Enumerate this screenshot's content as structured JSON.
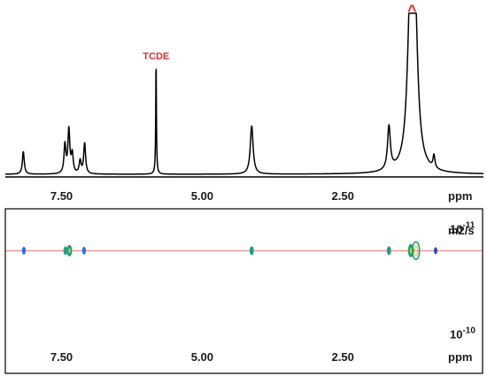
{
  "chart_data": [
    {
      "type": "line",
      "name": "1H NMR spectrum",
      "xlabel": "ppm",
      "xlim": [
        8.5,
        0.0
      ],
      "x_reversed": true,
      "ticks": [
        7.5,
        5.0,
        2.5
      ],
      "tick_labels": [
        "7.50",
        "5.00",
        "2.50"
      ],
      "annotations": [
        {
          "text": "TCDE",
          "color": "#e8262a",
          "x": 5.82
        },
        {
          "text": "^",
          "color": "#e8262a",
          "x": 1.27
        }
      ],
      "peaks": [
        {
          "ppm": 8.18,
          "height": 0.14,
          "width": 0.02
        },
        {
          "ppm": 7.44,
          "height": 0.18,
          "width": 0.02
        },
        {
          "ppm": 7.37,
          "height": 0.27,
          "width": 0.02
        },
        {
          "ppm": 7.31,
          "height": 0.12,
          "width": 0.02
        },
        {
          "ppm": 7.17,
          "height": 0.08,
          "width": 0.02
        },
        {
          "ppm": 7.09,
          "height": 0.19,
          "width": 0.02
        },
        {
          "ppm": 5.82,
          "height": 0.1,
          "width": 0.015
        },
        {
          "ppm": 5.82,
          "height": 0.63,
          "width": 0.006
        },
        {
          "ppm": 4.12,
          "height": 0.3,
          "width": 0.03
        },
        {
          "ppm": 1.68,
          "height": 0.27,
          "width": 0.03
        },
        {
          "ppm": 1.3,
          "height": 0.93,
          "width": 0.06
        },
        {
          "ppm": 1.22,
          "height": 0.93,
          "width": 0.06
        },
        {
          "ppm": 0.88,
          "height": 0.08,
          "width": 0.02
        }
      ]
    },
    {
      "type": "scatter",
      "name": "DOSY contour plot",
      "xlabel": "ppm",
      "ylabel": "m2/s",
      "xlim": [
        8.5,
        0.0
      ],
      "x_reversed": true,
      "y_scale": "log",
      "ticks": [
        7.5,
        5.0,
        2.5
      ],
      "tick_labels": [
        "7.50",
        "5.00",
        "2.50"
      ],
      "y_ticks": [
        {
          "value": 1e-11,
          "base": "10",
          "exp": "-11"
        },
        {
          "value": 1e-10,
          "base": "10",
          "exp": "-10"
        }
      ],
      "ylim": [
        6e-12,
        2.2e-10
      ],
      "reference_line": {
        "value": 1.5e-11,
        "color": "#ff6f6f"
      },
      "points": [
        {
          "x": 8.17,
          "y": 1.5e-11
        },
        {
          "x": 7.43,
          "y": 1.5e-11
        },
        {
          "x": 7.36,
          "y": 1.5e-11
        },
        {
          "x": 7.1,
          "y": 1.5e-11
        },
        {
          "x": 4.12,
          "y": 1.5e-11
        },
        {
          "x": 1.68,
          "y": 1.5e-11
        },
        {
          "x": 1.29,
          "y": 1.5e-11
        },
        {
          "x": 1.2,
          "y": 1.5e-11
        },
        {
          "x": 0.85,
          "y": 1.5e-11
        }
      ]
    }
  ]
}
